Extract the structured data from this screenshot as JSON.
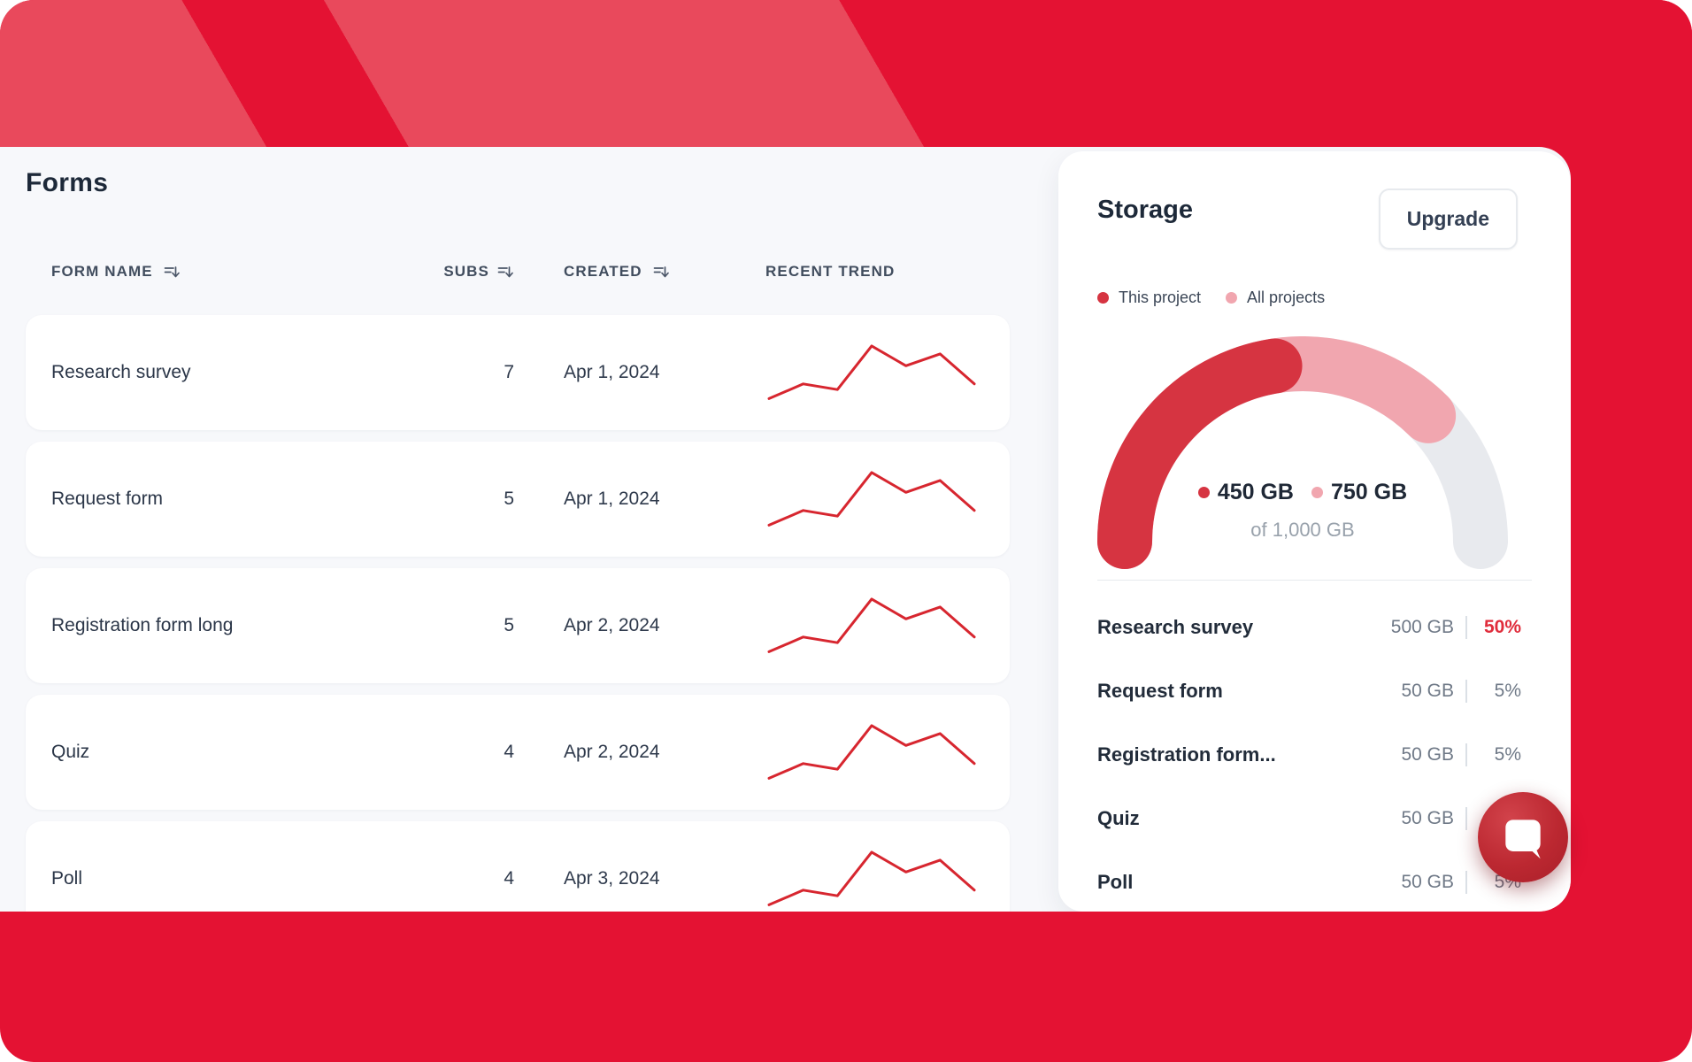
{
  "colors": {
    "base_red": "#e41233",
    "stripe_red": "#e9495c",
    "accent_red": "#d63441",
    "pink": "#f1a6af",
    "track_gray": "#e8eaee",
    "spark_red": "#d7262f",
    "percent_red": "#e02d3c",
    "chat_red": "#bc2831",
    "content_bg": "#f7f8fb",
    "text_dark": "#1d2939",
    "text_gray": "#98a1ab"
  },
  "forms": {
    "title": "Forms",
    "columns": [
      {
        "label": "FORM NAME",
        "sortable": true
      },
      {
        "label": "SUBS",
        "sortable": true
      },
      {
        "label": "CREATED",
        "sortable": true
      },
      {
        "label": "RECENT TREND",
        "sortable": false
      }
    ],
    "rows": [
      {
        "name": "Research survey",
        "subs": "7",
        "created": "Apr 1, 2024"
      },
      {
        "name": "Request form",
        "subs": "5",
        "created": "Apr 1, 2024"
      },
      {
        "name": "Registration form long",
        "subs": "5",
        "created": "Apr 2, 2024"
      },
      {
        "name": "Quiz",
        "subs": "4",
        "created": "Apr 2, 2024"
      },
      {
        "name": "Poll",
        "subs": "4",
        "created": "Apr 3, 2024"
      }
    ],
    "sparkline_values": [
      0.04,
      0.3,
      0.2,
      0.97,
      0.62,
      0.83,
      0.3
    ]
  },
  "storage": {
    "title": "Storage",
    "upgrade_label": "Upgrade",
    "legend": [
      {
        "label": "This project",
        "color": "#d63441"
      },
      {
        "label": "All projects",
        "color": "#f1a6af"
      }
    ],
    "gauge": {
      "used_label": "450 GB",
      "all_label": "750 GB",
      "total_label": "of 1,000 GB",
      "used_gb": 450,
      "all_gb": 750,
      "total_gb": 1000
    },
    "items": [
      {
        "name": "Research survey",
        "size": "500 GB",
        "percent": "50%",
        "highlight": true
      },
      {
        "name": "Request form",
        "size": "50 GB",
        "percent": "5%",
        "highlight": false
      },
      {
        "name": "Registration form...",
        "size": "50 GB",
        "percent": "5%",
        "highlight": false
      },
      {
        "name": "Quiz",
        "size": "50 GB",
        "percent": "5%",
        "highlight": false
      },
      {
        "name": "Poll",
        "size": "50 GB",
        "percent": "5%",
        "highlight": false
      }
    ]
  },
  "chat_button": {
    "icon": "speech-bubble"
  },
  "chart_data": [
    {
      "type": "gauge",
      "title": "Storage",
      "series": [
        {
          "name": "This project",
          "value": 450,
          "color": "#d63441"
        },
        {
          "name": "All projects",
          "value": 750,
          "color": "#f1a6af"
        }
      ],
      "max": 1000,
      "unit": "GB",
      "center_labels": [
        "450 GB",
        "750 GB",
        "of 1,000 GB"
      ],
      "legend_position": "top"
    },
    {
      "type": "line",
      "title": "Recent trend sparkline (repeated per form row)",
      "x": [
        0,
        1,
        2,
        3,
        4,
        5,
        6
      ],
      "values": [
        0.04,
        0.3,
        0.2,
        0.97,
        0.62,
        0.83,
        0.3
      ],
      "ylim": [
        0,
        1
      ],
      "grid": false
    }
  ]
}
